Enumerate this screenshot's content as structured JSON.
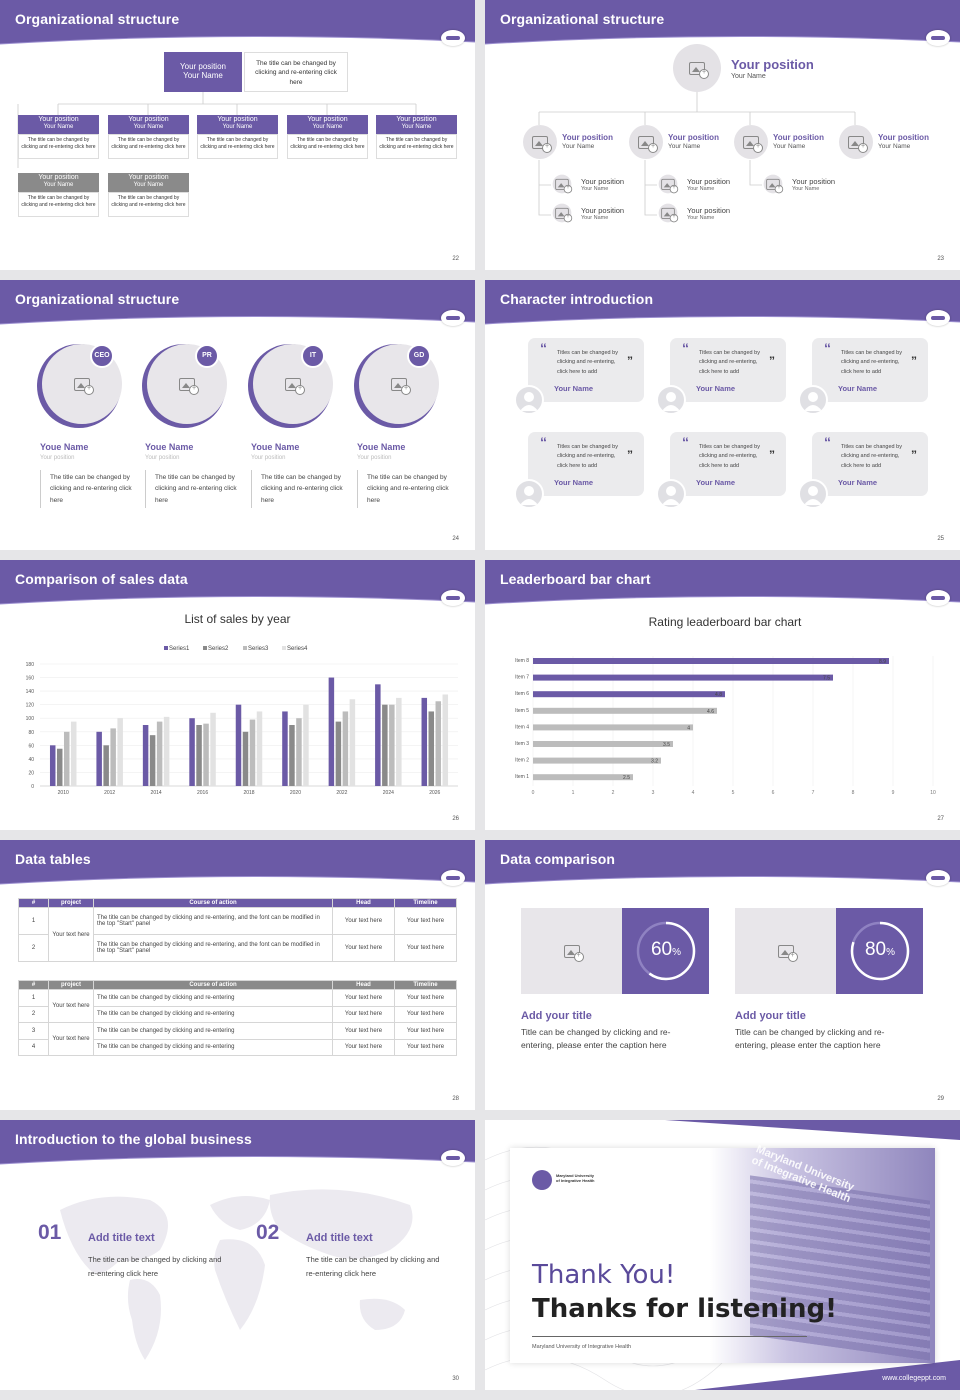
{
  "slides": {
    "s22": {
      "title": "Organizational structure",
      "page": "22",
      "top": {
        "position": "Your position",
        "name": "Your Name",
        "desc": "The title can be changed by clicking and re-entering click here"
      },
      "cards": [
        {
          "position": "Your position",
          "name": "Your Name",
          "desc": "The title can be changed by clicking and re-entering click here"
        },
        {
          "position": "Your position",
          "name": "Your Name",
          "desc": "The title can be changed by clicking and re-entering click here"
        },
        {
          "position": "Your position",
          "name": "Your Name",
          "desc": "The title can be changed by clicking and re-entering click here"
        },
        {
          "position": "Your position",
          "name": "Your Name",
          "desc": "The title can be changed by clicking and re-entering click here"
        },
        {
          "position": "Your position",
          "name": "Your Name",
          "desc": "The title can be changed by clicking and re-entering click here"
        },
        {
          "position": "Your position",
          "name": "Your Name",
          "desc": "The title can be changed by clicking and re-entering click here"
        },
        {
          "position": "Your position",
          "name": "Your Name",
          "desc": "The title can be changed by clicking and re-entering click here"
        }
      ]
    },
    "s23": {
      "title": "Organizational structure",
      "page": "23",
      "top": {
        "position": "Your position",
        "name": "Your Name"
      },
      "mid": [
        {
          "position": "Your position",
          "name": "Your Name"
        },
        {
          "position": "Your position",
          "name": "Your Name"
        },
        {
          "position": "Your position",
          "name": "Your Name"
        },
        {
          "position": "Your position",
          "name": "Your Name"
        }
      ],
      "sub": [
        {
          "position": "Your position",
          "name": "Your Name"
        },
        {
          "position": "Your position",
          "name": "Your Name"
        },
        {
          "position": "Your position",
          "name": "Your Name"
        },
        {
          "position": "Your position",
          "name": "Your Name"
        },
        {
          "position": "Your position",
          "name": "Your Name"
        }
      ]
    },
    "s24": {
      "title": "Organizational structure",
      "page": "24",
      "people": [
        {
          "badge": "CEO",
          "name": "Youe Name",
          "position": "Your position",
          "desc": "The title can be changed by clicking and re-entering click here"
        },
        {
          "badge": "PR",
          "name": "Youe Name",
          "position": "Your position",
          "desc": "The title can be changed by clicking and re-entering click here"
        },
        {
          "badge": "IT",
          "name": "Youe Name",
          "position": "Your position",
          "desc": "The title can be changed by clicking and re-entering click here"
        },
        {
          "badge": "GD",
          "name": "Youe Name",
          "position": "Your position",
          "desc": "The title can be changed by clicking and re-entering click here"
        }
      ]
    },
    "s25": {
      "title": "Character introduction",
      "page": "25",
      "quote": "Titles can be changed by clicking and re-entering, click here to add",
      "name": "Your Name",
      "q_open": "“",
      "q_close": "”"
    },
    "s26": {
      "title": "Comparison of sales data",
      "page": "26"
    },
    "s27": {
      "title": "Leaderboard bar chart",
      "page": "27"
    },
    "s28": {
      "title": "Data tables",
      "page": "28",
      "t1": {
        "headers": [
          "#",
          "project",
          "Course of action",
          "Head",
          "Timeline"
        ],
        "rows": [
          {
            "n": "1",
            "action": "The title can be changed by clicking and re-entering, and the font can be modified in the top \"Start\" panel",
            "head": "Your text here",
            "time": "Your text here"
          },
          {
            "n": "2",
            "action": "The title can be changed by clicking and re-entering, and the font can be modified in the top \"Start\" panel",
            "head": "Your text here",
            "time": "Your text here"
          }
        ],
        "project": "Your text here"
      },
      "t2": {
        "headers": [
          "#",
          "project",
          "Course of action",
          "Head",
          "Timeline"
        ],
        "rows": [
          {
            "n": "1",
            "action": "The title can be changed by clicking and re-entering",
            "head": "Your text here",
            "time": "Your text here"
          },
          {
            "n": "2",
            "action": "The title can be changed by clicking and re-entering",
            "head": "Your text here",
            "time": "Your text here"
          },
          {
            "n": "3",
            "action": "The title can be changed by clicking and re-entering",
            "head": "Your text here",
            "time": "Your text here"
          },
          {
            "n": "4",
            "action": "The title can be changed by clicking and re-entering",
            "head": "Your text here",
            "time": "Your text here"
          }
        ],
        "project_a": "Your text here",
        "project_b": "Your text here"
      }
    },
    "s29": {
      "title": "Data comparison",
      "page": "29",
      "items": [
        {
          "value": "60",
          "unit": "%",
          "pct": 60,
          "title": "Add your title",
          "desc": "Title can be changed by clicking and re-entering, please enter the caption here"
        },
        {
          "value": "80",
          "unit": "%",
          "pct": 80,
          "title": "Add your title",
          "desc": "Title can be changed by clicking and re-entering, please enter the caption here"
        }
      ]
    },
    "s30": {
      "title": "Introduction to the global business",
      "page": "30",
      "items": [
        {
          "num": "01",
          "title": "Add title text",
          "desc": "The title can be changed by clicking and re-entering click here"
        },
        {
          "num": "02",
          "title": "Add title text",
          "desc": "The title can be changed by clicking and re-entering click here"
        }
      ]
    },
    "s31": {
      "thanks": "Thank You!",
      "listen": "Thanks for listening!",
      "school": "Maryland University of Integrative Health",
      "logo_text": "Maryland University of Integrative Health",
      "building_text": "Maryland University of Integrative Health",
      "site": "www.collegeppt.com"
    }
  },
  "chart_data": [
    {
      "type": "bar",
      "title": "List of sales by year",
      "categories": [
        "2010",
        "2012",
        "2014",
        "2016",
        "2018",
        "2020",
        "2022",
        "2024",
        "2026"
      ],
      "ylim": [
        0,
        180
      ],
      "yticks": [
        0,
        20,
        40,
        60,
        80,
        100,
        120,
        140,
        160,
        180
      ],
      "series": [
        {
          "name": "Series1",
          "color": "#6b5aa6",
          "values": [
            60,
            80,
            90,
            100,
            120,
            110,
            160,
            150,
            130
          ]
        },
        {
          "name": "Series2",
          "color": "#8a8a8a",
          "values": [
            55,
            60,
            75,
            90,
            80,
            90,
            95,
            120,
            110
          ]
        },
        {
          "name": "Series3",
          "color": "#bcbcbc",
          "values": [
            80,
            85,
            95,
            92,
            98,
            100,
            110,
            120,
            125
          ]
        },
        {
          "name": "Series4",
          "color": "#e2e2e2",
          "values": [
            95,
            100,
            102,
            108,
            110,
            120,
            128,
            130,
            135
          ]
        }
      ]
    },
    {
      "type": "bar",
      "orientation": "horizontal",
      "title": "Rating leaderboard bar chart",
      "categories": [
        "Item 8",
        "Item 7",
        "Item 6",
        "Item 5",
        "Item 4",
        "Item 3",
        "Item 2",
        "Item 1"
      ],
      "values": [
        8.9,
        7.5,
        4.8,
        4.6,
        4,
        3.5,
        3.2,
        2.5
      ],
      "labels": [
        "8.9",
        "7.5",
        "4.8",
        "4.6",
        "4",
        "3.5",
        "3.2",
        "2.5"
      ],
      "colors": [
        "#6b5aa6",
        "#6b5aa6",
        "#6b5aa6",
        "#bcbcbc",
        "#bcbcbc",
        "#bcbcbc",
        "#bcbcbc",
        "#bcbcbc"
      ],
      "xlim": [
        0,
        10
      ],
      "xticks": [
        "0",
        "1",
        "2",
        "3",
        "4",
        "5",
        "6",
        "7",
        "8",
        "9",
        "10"
      ]
    }
  ]
}
